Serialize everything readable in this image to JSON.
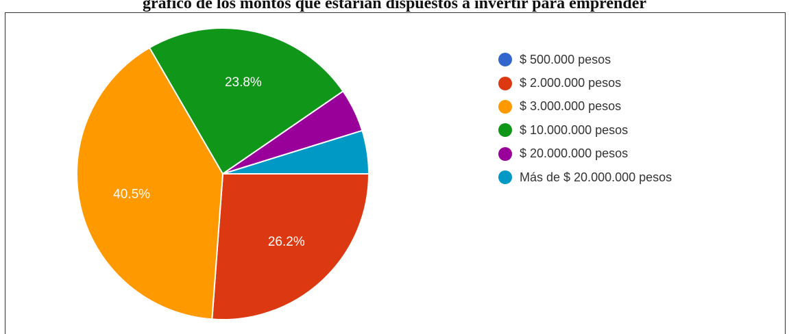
{
  "caption": "gráfico de los montos que estarían dispuestos a invertir para emprender",
  "chart_data": {
    "type": "pie",
    "slices": [
      {
        "label": "$ 500.000 pesos",
        "value": 0,
        "color": "#3366cc",
        "pct_label": ""
      },
      {
        "label": "$ 2.000.000 pesos",
        "value": 26.2,
        "color": "#dc3912",
        "pct_label": "26.2%"
      },
      {
        "label": "$ 3.000.000 pesos",
        "value": 40.5,
        "color": "#ff9900",
        "pct_label": "40.5%"
      },
      {
        "label": "$ 10.000.000 pesos",
        "value": 23.8,
        "color": "#109618",
        "pct_label": "23.8%"
      },
      {
        "label": "$ 20.000.000 pesos",
        "value": 4.8,
        "color": "#990099",
        "pct_label": ""
      },
      {
        "label": "Más de $ 20.000.000 pesos",
        "value": 4.8,
        "color": "#0099c6",
        "pct_label": ""
      }
    ],
    "legend_position": "right"
  }
}
